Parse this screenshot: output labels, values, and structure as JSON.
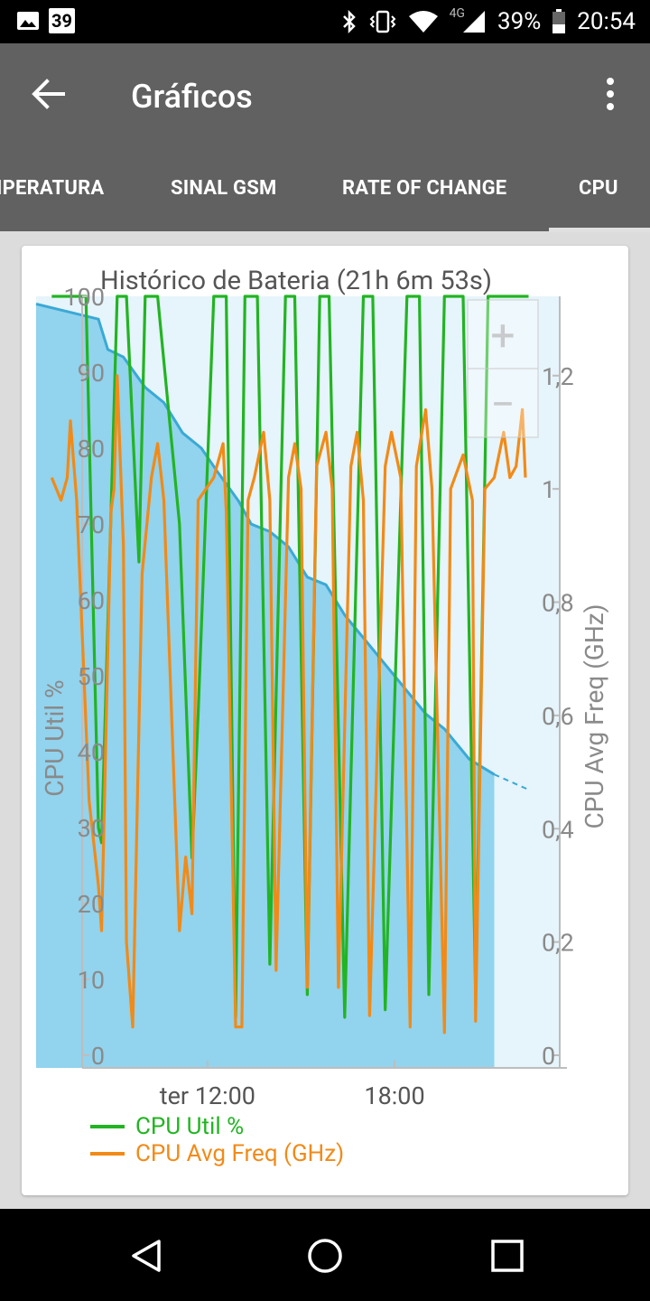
{
  "status_bar": {
    "notification_count": "39",
    "battery_percent": "39%",
    "network": "4G",
    "time": "20:54",
    "icons": [
      "image-icon",
      "bluetooth-icon",
      "vibrate-icon",
      "wifi-icon",
      "signal-icon",
      "battery-icon"
    ]
  },
  "app_bar": {
    "title": "Gráficos",
    "back_icon": "arrow-left-icon",
    "menu_icon": "more-vert-icon"
  },
  "tabs": [
    {
      "label": "IPERATURA",
      "selected": false
    },
    {
      "label": "SINAL GSM",
      "selected": false
    },
    {
      "label": "RATE OF CHANGE",
      "selected": false
    },
    {
      "label": "CPU",
      "selected": true
    }
  ],
  "zoom": {
    "in_label": "+",
    "out_label": "−"
  },
  "legend": [
    {
      "label": "CPU Util %",
      "color": "#22b422"
    },
    {
      "label": "CPU Avg Freq (GHz)",
      "color": "#f28a17"
    }
  ],
  "colors": {
    "battery_fill": "#92d3ee",
    "battery_line": "#3aa9d6",
    "cpu_util": "#22b422",
    "cpu_freq": "#f28a17"
  },
  "chart_data": {
    "type": "line",
    "title": "Histórico de Bateria (21h 6m 53s)",
    "ylabel_left": "CPU Util %",
    "ylabel_right": "CPU Avg Freq (GHz)",
    "left_ticks": [
      "0",
      "10",
      "20",
      "30",
      "40",
      "50",
      "60",
      "70",
      "80",
      "90",
      "100"
    ],
    "right_ticks": [
      "0",
      "0,2",
      "0,4",
      "0,6",
      "0,8",
      "1",
      "1,2"
    ],
    "x_ticks": [
      {
        "label": "ter 12:00",
        "x": 9.0
      },
      {
        "label": "18:00",
        "x": 15.0
      }
    ],
    "xlim": [
      3.5,
      20.3
    ],
    "ylim_left": [
      0,
      100
    ],
    "ylim_right": [
      0,
      1.34
    ],
    "battery_level": {
      "x": [
        3.5,
        5.5,
        5.8,
        6.3,
        7.0,
        7.6,
        8.2,
        8.8,
        9.3,
        10.0,
        10.4,
        11.0,
        11.6,
        12.2,
        12.8,
        13.4,
        14.0,
        14.6,
        15.4,
        16.0,
        16.6,
        17.4,
        17.8,
        18.2
      ],
      "y": [
        99,
        97,
        93,
        92,
        88,
        86,
        82,
        80,
        77,
        73,
        70,
        69,
        67,
        63,
        62,
        58,
        55,
        52,
        48,
        45,
        43,
        39,
        38,
        37
      ]
    },
    "battery_projection": {
      "x": [
        18.2,
        19.3
      ],
      "y": [
        37,
        35
      ]
    },
    "series": [
      {
        "name": "CPU Util %",
        "axis": "left",
        "x": [
          4.0,
          5.1,
          5.5,
          5.6,
          6.1,
          6.4,
          6.8,
          7.0,
          7.4,
          8.1,
          8.5,
          8.7,
          9.2,
          9.6,
          9.9,
          10.2,
          10.6,
          11.0,
          11.5,
          11.8,
          12.2,
          12.6,
          12.9,
          13.4,
          14.0,
          14.3,
          14.7,
          15.4,
          15.8,
          16.1,
          16.6,
          17.2,
          17.6,
          18.0,
          18.4,
          18.6,
          18.9,
          19.3
        ],
        "y": [
          100,
          100,
          30,
          28,
          100,
          100,
          65,
          100,
          100,
          70,
          26,
          45,
          100,
          100,
          5,
          100,
          100,
          12,
          100,
          100,
          8,
          100,
          100,
          5,
          100,
          100,
          6,
          100,
          100,
          8,
          100,
          100,
          8,
          100,
          100,
          100,
          100,
          100
        ]
      },
      {
        "name": "CPU Avg Freq (GHz)",
        "axis": "right",
        "x": [
          4.0,
          4.3,
          4.5,
          4.6,
          4.8,
          5.2,
          5.5,
          5.6,
          5.9,
          6.0,
          6.1,
          6.3,
          6.4,
          6.6,
          6.9,
          7.2,
          7.4,
          7.6,
          7.9,
          8.1,
          8.3,
          8.5,
          8.7,
          9.2,
          9.5,
          9.6,
          9.9,
          10.1,
          10.3,
          10.5,
          10.8,
          11.0,
          11.2,
          11.6,
          11.8,
          12.0,
          12.2,
          12.5,
          12.8,
          13.0,
          13.2,
          13.6,
          13.8,
          14.0,
          14.2,
          14.7,
          14.9,
          15.2,
          15.5,
          15.7,
          16.0,
          16.2,
          16.6,
          16.8,
          17.2,
          17.5,
          17.6,
          17.9,
          18.2,
          18.5,
          18.7,
          18.9,
          19.1,
          19.2
        ],
        "y": [
          1.02,
          0.98,
          1.02,
          1.12,
          0.98,
          0.45,
          0.3,
          0.22,
          0.96,
          1.0,
          1.2,
          0.9,
          0.2,
          0.05,
          0.85,
          1.02,
          1.08,
          0.98,
          0.52,
          0.22,
          0.35,
          0.25,
          0.98,
          1.02,
          1.08,
          0.96,
          0.05,
          0.05,
          0.98,
          1.02,
          1.1,
          0.98,
          0.15,
          1.02,
          1.08,
          1.0,
          0.12,
          1.04,
          1.1,
          1.0,
          0.12,
          1.04,
          1.1,
          0.98,
          0.07,
          1.04,
          1.1,
          1.02,
          0.05,
          1.04,
          1.14,
          1.0,
          0.04,
          1.0,
          1.06,
          0.98,
          0.06,
          1.0,
          1.02,
          1.1,
          1.02,
          1.04,
          1.14,
          1.02
        ]
      }
    ]
  }
}
